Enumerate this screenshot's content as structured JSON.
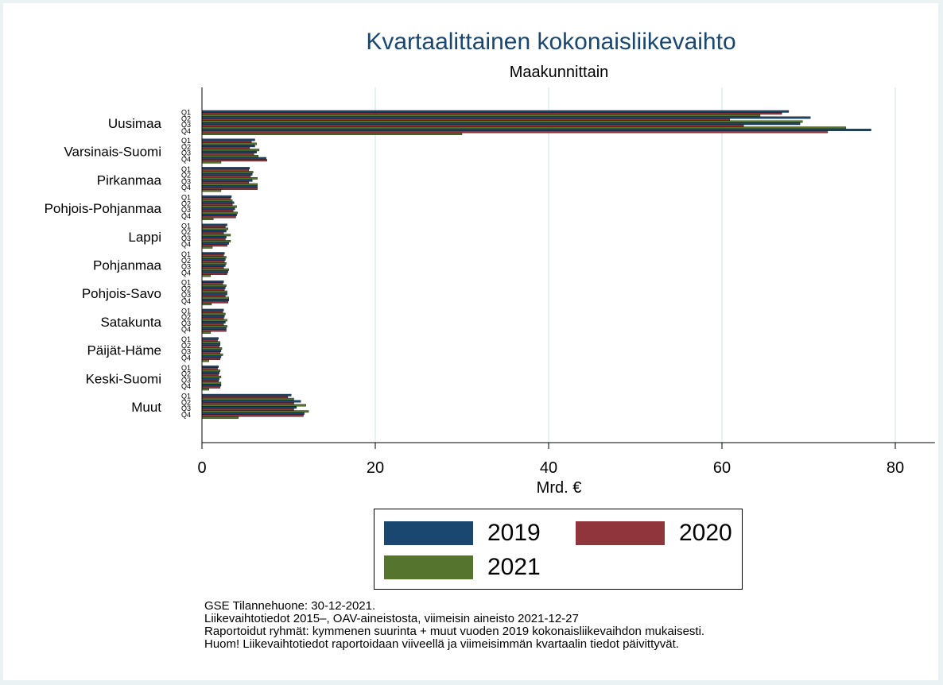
{
  "chart_data": {
    "type": "bar",
    "orientation": "horizontal",
    "title": "Kvartaalittainen kokonaisliikevaihto",
    "subtitle": "Maakunnittain",
    "xlabel": "Mrd. €",
    "xlim": [
      0,
      82
    ],
    "xticks": [
      "0",
      "20",
      "40",
      "60",
      "80"
    ],
    "grid": true,
    "legend_position": "bottom",
    "categories": [
      "Uusimaa",
      "Varsinais-Suomi",
      "Pirkanmaa",
      "Pohjois-Pohjanmaa",
      "Lappi",
      "Pohjanmaa",
      "Pohjois-Savo",
      "Satakunta",
      "Päijät-Häme",
      "Keski-Suomi",
      "Muut"
    ],
    "quarters": [
      "Q1",
      "Q2",
      "Q3",
      "Q4"
    ],
    "series": [
      {
        "name": "2019",
        "color": "#1a476f",
        "values": [
          [
            67.7,
            70.2,
            69.0,
            77.2
          ],
          [
            6.1,
            6.1,
            6.3,
            7.4
          ],
          [
            5.5,
            5.8,
            5.8,
            6.4
          ],
          [
            3.4,
            3.7,
            3.8,
            4.0
          ],
          [
            2.9,
            2.8,
            2.8,
            3.1
          ],
          [
            2.6,
            2.7,
            2.7,
            3.0
          ],
          [
            2.5,
            2.7,
            2.9,
            3.1
          ],
          [
            2.5,
            2.6,
            2.7,
            2.8
          ],
          [
            1.9,
            2.1,
            2.2,
            2.2
          ],
          [
            1.9,
            2.0,
            2.0,
            2.2
          ],
          [
            10.3,
            11.4,
            10.9,
            11.8
          ]
        ]
      },
      {
        "name": "2020",
        "color": "#90353b",
        "values": [
          [
            66.9,
            60.9,
            62.5,
            72.2
          ],
          [
            5.7,
            5.5,
            6.0,
            7.5
          ],
          [
            5.4,
            5.6,
            5.4,
            6.4
          ],
          [
            3.3,
            3.5,
            3.6,
            3.9
          ],
          [
            2.7,
            2.5,
            2.7,
            2.9
          ],
          [
            2.5,
            2.6,
            2.5,
            2.9
          ],
          [
            2.4,
            2.6,
            2.7,
            3.0
          ],
          [
            2.4,
            2.5,
            2.5,
            2.8
          ],
          [
            1.8,
            2.0,
            2.1,
            2.1
          ],
          [
            1.8,
            1.9,
            1.9,
            2.1
          ],
          [
            9.9,
            10.6,
            10.6,
            11.7
          ]
        ]
      },
      {
        "name": "2021",
        "color": "#55752f",
        "values": [
          [
            64.4,
            69.3,
            74.3,
            30.0
          ],
          [
            6.3,
            6.6,
            6.5,
            2.2
          ],
          [
            5.9,
            6.4,
            6.4,
            2.2
          ],
          [
            3.5,
            4.0,
            4.1,
            1.3
          ],
          [
            3.0,
            3.3,
            3.3,
            1.2
          ],
          [
            2.8,
            2.8,
            3.1,
            1.0
          ],
          [
            2.8,
            2.9,
            3.1,
            1.1
          ],
          [
            2.7,
            2.9,
            2.9,
            1.0
          ],
          [
            2.1,
            2.3,
            2.4,
            0.8
          ],
          [
            2.1,
            2.2,
            2.2,
            0.8
          ],
          [
            10.6,
            12.0,
            12.3,
            4.2
          ]
        ]
      }
    ]
  },
  "notes": [
    "GSE Tilannehuone: 30-12-2021.",
    "Liikevaihtotiedot 2015–, OAV-aineistosta, viimeisin aineisto 2021-12-27",
    "Raportoidut ryhmät: kymmenen suurinta + muut vuoden 2019 kokonaisliikevaihdon mukaisesti.",
    "Huom! Liikevaihtotiedot raportoidaan viiveellä ja viimeisimmän kvartaalin tiedot päivittyvät."
  ]
}
